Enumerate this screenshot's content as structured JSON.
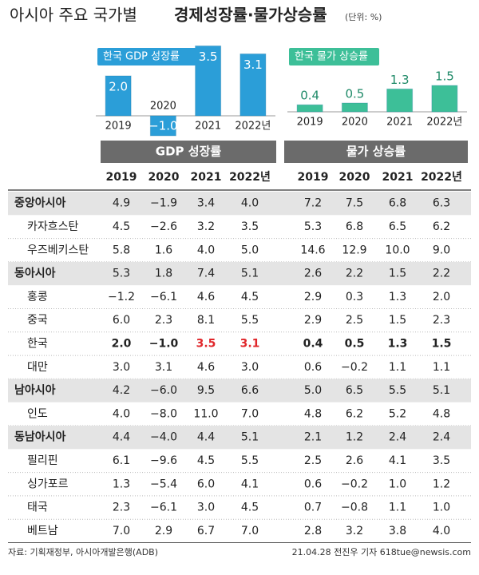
{
  "header": {
    "title": "아시아 주요 국가별",
    "title_bold": "경제성장률·물가상승률",
    "unit": "(단위: %)"
  },
  "chart_data": [
    {
      "type": "bar",
      "title": "한국 GDP 성장률",
      "categories": [
        "2019",
        "2020",
        "2021",
        "2022년"
      ],
      "values": [
        2.0,
        -1.0,
        3.5,
        3.1
      ],
      "value_labels": [
        "2.0",
        "−1.0",
        "3.5",
        "3.1"
      ],
      "color": "#2b9ed8"
    },
    {
      "type": "bar",
      "title": "한국 물가 상승률",
      "categories": [
        "2019",
        "2020",
        "2021",
        "2022년"
      ],
      "values": [
        0.4,
        0.5,
        1.3,
        1.5
      ],
      "value_labels": [
        "0.4",
        "0.5",
        "1.3",
        "1.5"
      ],
      "color": "#3dbf98"
    }
  ],
  "table": {
    "col_groups": [
      "GDP 성장률",
      "물가 상승률"
    ],
    "years": [
      "2019",
      "2020",
      "2021",
      "2022년"
    ],
    "rows": [
      {
        "label": "중앙아시아",
        "values": [
          "4.9",
          "−1.9",
          "3.4",
          "4.0",
          "7.2",
          "7.5",
          "6.8",
          "6.3"
        ]
      },
      {
        "label": "카자흐스탄",
        "values": [
          "4.5",
          "−2.6",
          "3.2",
          "3.5",
          "5.3",
          "6.8",
          "6.5",
          "6.2"
        ]
      },
      {
        "label": "우즈베키스탄",
        "values": [
          "5.8",
          "1.6",
          "4.0",
          "5.0",
          "14.6",
          "12.9",
          "10.0",
          "9.0"
        ]
      },
      {
        "label": "동아시아",
        "values": [
          "5.3",
          "1.8",
          "7.4",
          "5.1",
          "2.6",
          "2.2",
          "1.5",
          "2.2"
        ]
      },
      {
        "label": "홍콩",
        "values": [
          "−1.2",
          "−6.1",
          "4.6",
          "4.5",
          "2.9",
          "0.3",
          "1.3",
          "2.0"
        ]
      },
      {
        "label": "중국",
        "values": [
          "6.0",
          "2.3",
          "8.1",
          "5.5",
          "2.9",
          "2.5",
          "1.5",
          "2.3"
        ]
      },
      {
        "label": "한국",
        "values": [
          "2.0",
          "−1.0",
          "3.5",
          "3.1",
          "0.4",
          "0.5",
          "1.3",
          "1.5"
        ]
      },
      {
        "label": "대만",
        "values": [
          "3.0",
          "3.1",
          "4.6",
          "3.0",
          "0.6",
          "−0.2",
          "1.1",
          "1.1"
        ]
      },
      {
        "label": "남아시아",
        "values": [
          "4.2",
          "−6.0",
          "9.5",
          "6.6",
          "5.0",
          "6.5",
          "5.5",
          "5.1"
        ]
      },
      {
        "label": "인도",
        "values": [
          "4.0",
          "−8.0",
          "11.0",
          "7.0",
          "4.8",
          "6.2",
          "5.2",
          "4.8"
        ]
      },
      {
        "label": "동남아시아",
        "values": [
          "4.4",
          "−4.0",
          "4.4",
          "5.1",
          "2.1",
          "1.2",
          "2.4",
          "2.4"
        ]
      },
      {
        "label": "필리핀",
        "values": [
          "6.1",
          "−9.6",
          "4.5",
          "5.5",
          "2.5",
          "2.6",
          "4.1",
          "3.5"
        ]
      },
      {
        "label": "싱가포르",
        "values": [
          "1.3",
          "−5.4",
          "6.0",
          "4.1",
          "0.6",
          "−0.2",
          "1.0",
          "1.2"
        ]
      },
      {
        "label": "태국",
        "values": [
          "2.3",
          "−6.1",
          "3.0",
          "4.5",
          "0.7",
          "−0.8",
          "1.1",
          "1.0"
        ]
      },
      {
        "label": "베트남",
        "values": [
          "7.0",
          "2.9",
          "6.7",
          "7.0",
          "2.8",
          "3.2",
          "3.8",
          "4.0"
        ]
      }
    ]
  },
  "footer": {
    "source": "자료: 기획재정부, 아시아개발은행(ADB)",
    "credit": "21.04.28 전진우 기자 618tue@newsis.com"
  }
}
